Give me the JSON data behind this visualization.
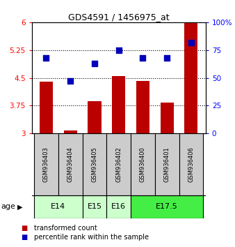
{
  "title": "GDS4591 / 1456975_at",
  "samples": [
    "GSM936403",
    "GSM936404",
    "GSM936405",
    "GSM936402",
    "GSM936400",
    "GSM936401",
    "GSM936406"
  ],
  "red_values": [
    4.4,
    3.08,
    3.86,
    4.55,
    4.42,
    3.84,
    6.0
  ],
  "blue_values": [
    68,
    47,
    63,
    75,
    68,
    68,
    82
  ],
  "ylim_left": [
    3,
    6
  ],
  "ylim_right": [
    0,
    100
  ],
  "yticks_left": [
    3,
    3.75,
    4.5,
    5.25,
    6
  ],
  "ytick_labels_left": [
    "3",
    "3.75",
    "4.5",
    "5.25",
    "6"
  ],
  "yticks_right": [
    0,
    25,
    50,
    75,
    100
  ],
  "ytick_labels_right": [
    "0",
    "25",
    "50",
    "75",
    "100%"
  ],
  "bar_color": "#bb0000",
  "dot_color": "#0000bb",
  "age_groups": [
    {
      "label": "E14",
      "indices": [
        0,
        1
      ],
      "color": "#ccffcc"
    },
    {
      "label": "E15",
      "indices": [
        2
      ],
      "color": "#ccffcc"
    },
    {
      "label": "E16",
      "indices": [
        3
      ],
      "color": "#ccffcc"
    },
    {
      "label": "E17.5",
      "indices": [
        4,
        5,
        6
      ],
      "color": "#44ee44"
    }
  ],
  "age_label": "age",
  "legend_red": "transformed count",
  "legend_blue": "percentile rank within the sample",
  "bar_width": 0.55,
  "dot_size": 35,
  "sample_box_color": "#cccccc",
  "grid_lines": [
    3.75,
    4.5,
    5.25
  ],
  "title_fontsize": 9,
  "tick_fontsize": 7.5,
  "sample_fontsize": 6,
  "age_fontsize": 8,
  "legend_fontsize": 7
}
